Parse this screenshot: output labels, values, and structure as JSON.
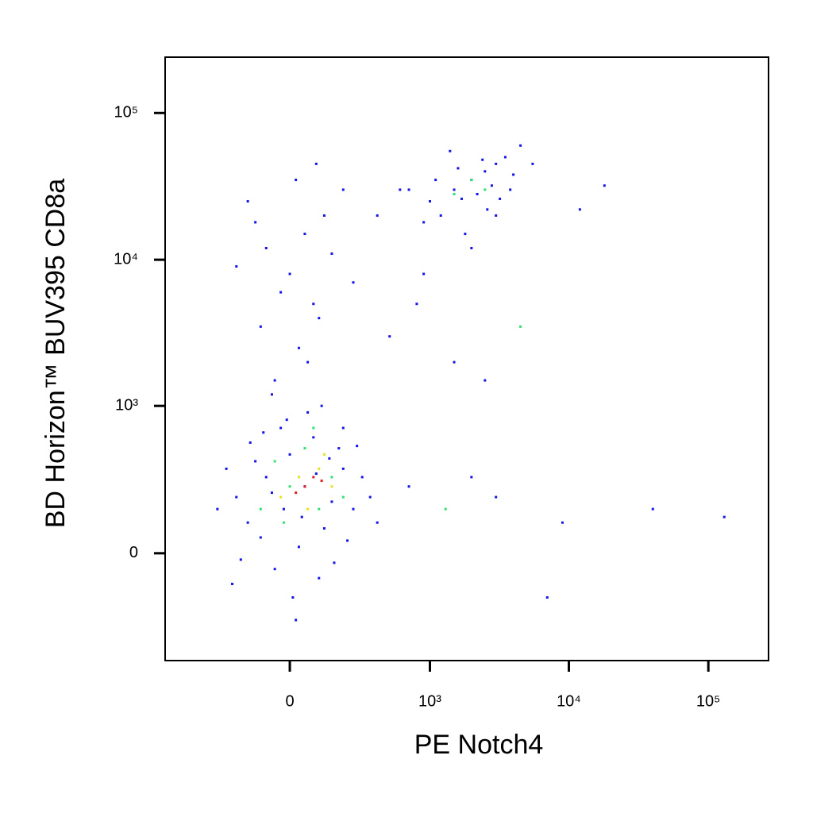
{
  "chart_data": {
    "type": "scatter",
    "x_label": "PE Notch4",
    "y_label": "BD Horizon™ BUV395 CD8a",
    "xscale": "asinh",
    "yscale": "asinh",
    "xlim": [
      -770,
      270000
    ],
    "ylim": [
      -520,
      240000
    ],
    "xticks": [
      0,
      {
        "value": 1000,
        "label": "10³"
      },
      {
        "value": 10000,
        "label": "10⁴"
      },
      {
        "value": 100000,
        "label": "10⁵"
      }
    ],
    "yticks": [
      0,
      {
        "value": 1000,
        "label": "10³"
      },
      {
        "value": 10000,
        "label": "10⁴"
      },
      {
        "value": 100000,
        "label": "10⁵"
      }
    ],
    "series": [
      {
        "color": "#1414e6",
        "x": [
          -150,
          -80,
          -20,
          50,
          120,
          200,
          -200,
          0,
          80,
          150,
          -100,
          30,
          250,
          -50,
          100,
          300,
          -250,
          180,
          -30,
          60,
          -120,
          220,
          10,
          -180,
          140,
          350,
          -300,
          90,
          -60,
          40,
          270,
          -10,
          110,
          -90,
          160,
          400,
          -220,
          20,
          200,
          -140,
          -50,
          30,
          -100,
          80,
          0,
          -80,
          50,
          120,
          -150,
          200,
          -30,
          100,
          -200,
          150,
          60,
          -60,
          250,
          20,
          -120,
          90,
          500,
          800,
          400,
          700,
          1500,
          2500,
          900,
          1000,
          1500,
          2000,
          2500,
          3000,
          1200,
          1800,
          2200,
          2800,
          3500,
          4000,
          1600,
          2600,
          900,
          3200,
          1400,
          4500,
          5500,
          2000,
          1100,
          3800,
          2400,
          1700,
          3000,
          600,
          18000,
          12000,
          7000,
          40000,
          130000,
          9000,
          3000,
          2000,
          700
        ],
        "y": [
          100,
          300,
          150,
          250,
          80,
          350,
          200,
          450,
          600,
          180,
          50,
          20,
          150,
          -50,
          -80,
          300,
          350,
          500,
          700,
          900,
          400,
          40,
          -150,
          -20,
          420,
          200,
          150,
          320,
          220,
          120,
          520,
          800,
          1000,
          650,
          -30,
          100,
          -100,
          -250,
          700,
          550,
          1500,
          2500,
          3500,
          5000,
          8000,
          12000,
          15000,
          20000,
          25000,
          30000,
          6000,
          4000,
          9000,
          11000,
          2000,
          1200,
          7000,
          35000,
          18000,
          45000,
          3000,
          5000,
          20000,
          30000,
          2000,
          1500,
          8000,
          25000,
          30000,
          35000,
          40000,
          45000,
          20000,
          15000,
          28000,
          32000,
          50000,
          38000,
          42000,
          22000,
          18000,
          26000,
          55000,
          60000,
          45000,
          12000,
          35000,
          30000,
          48000,
          26000,
          20000,
          30000,
          32000,
          22000,
          -150,
          150,
          120,
          100,
          200,
          300,
          250
        ]
      },
      {
        "color": "#30e070",
        "x": [
          0,
          100,
          -50,
          150,
          50,
          -100,
          200,
          2000,
          2500,
          1500,
          80,
          -20,
          1300,
          4500
        ],
        "y": [
          250,
          150,
          400,
          300,
          500,
          150,
          200,
          35000,
          30000,
          28000,
          700,
          100,
          150,
          3500
        ]
      },
      {
        "color": "#e8e020",
        "x": [
          30,
          100,
          -30,
          150,
          60,
          120
        ],
        "y": [
          300,
          350,
          200,
          250,
          150,
          450
        ]
      },
      {
        "color": "#e02020",
        "x": [
          50,
          80,
          20,
          110
        ],
        "y": [
          250,
          300,
          220,
          280
        ]
      }
    ]
  }
}
